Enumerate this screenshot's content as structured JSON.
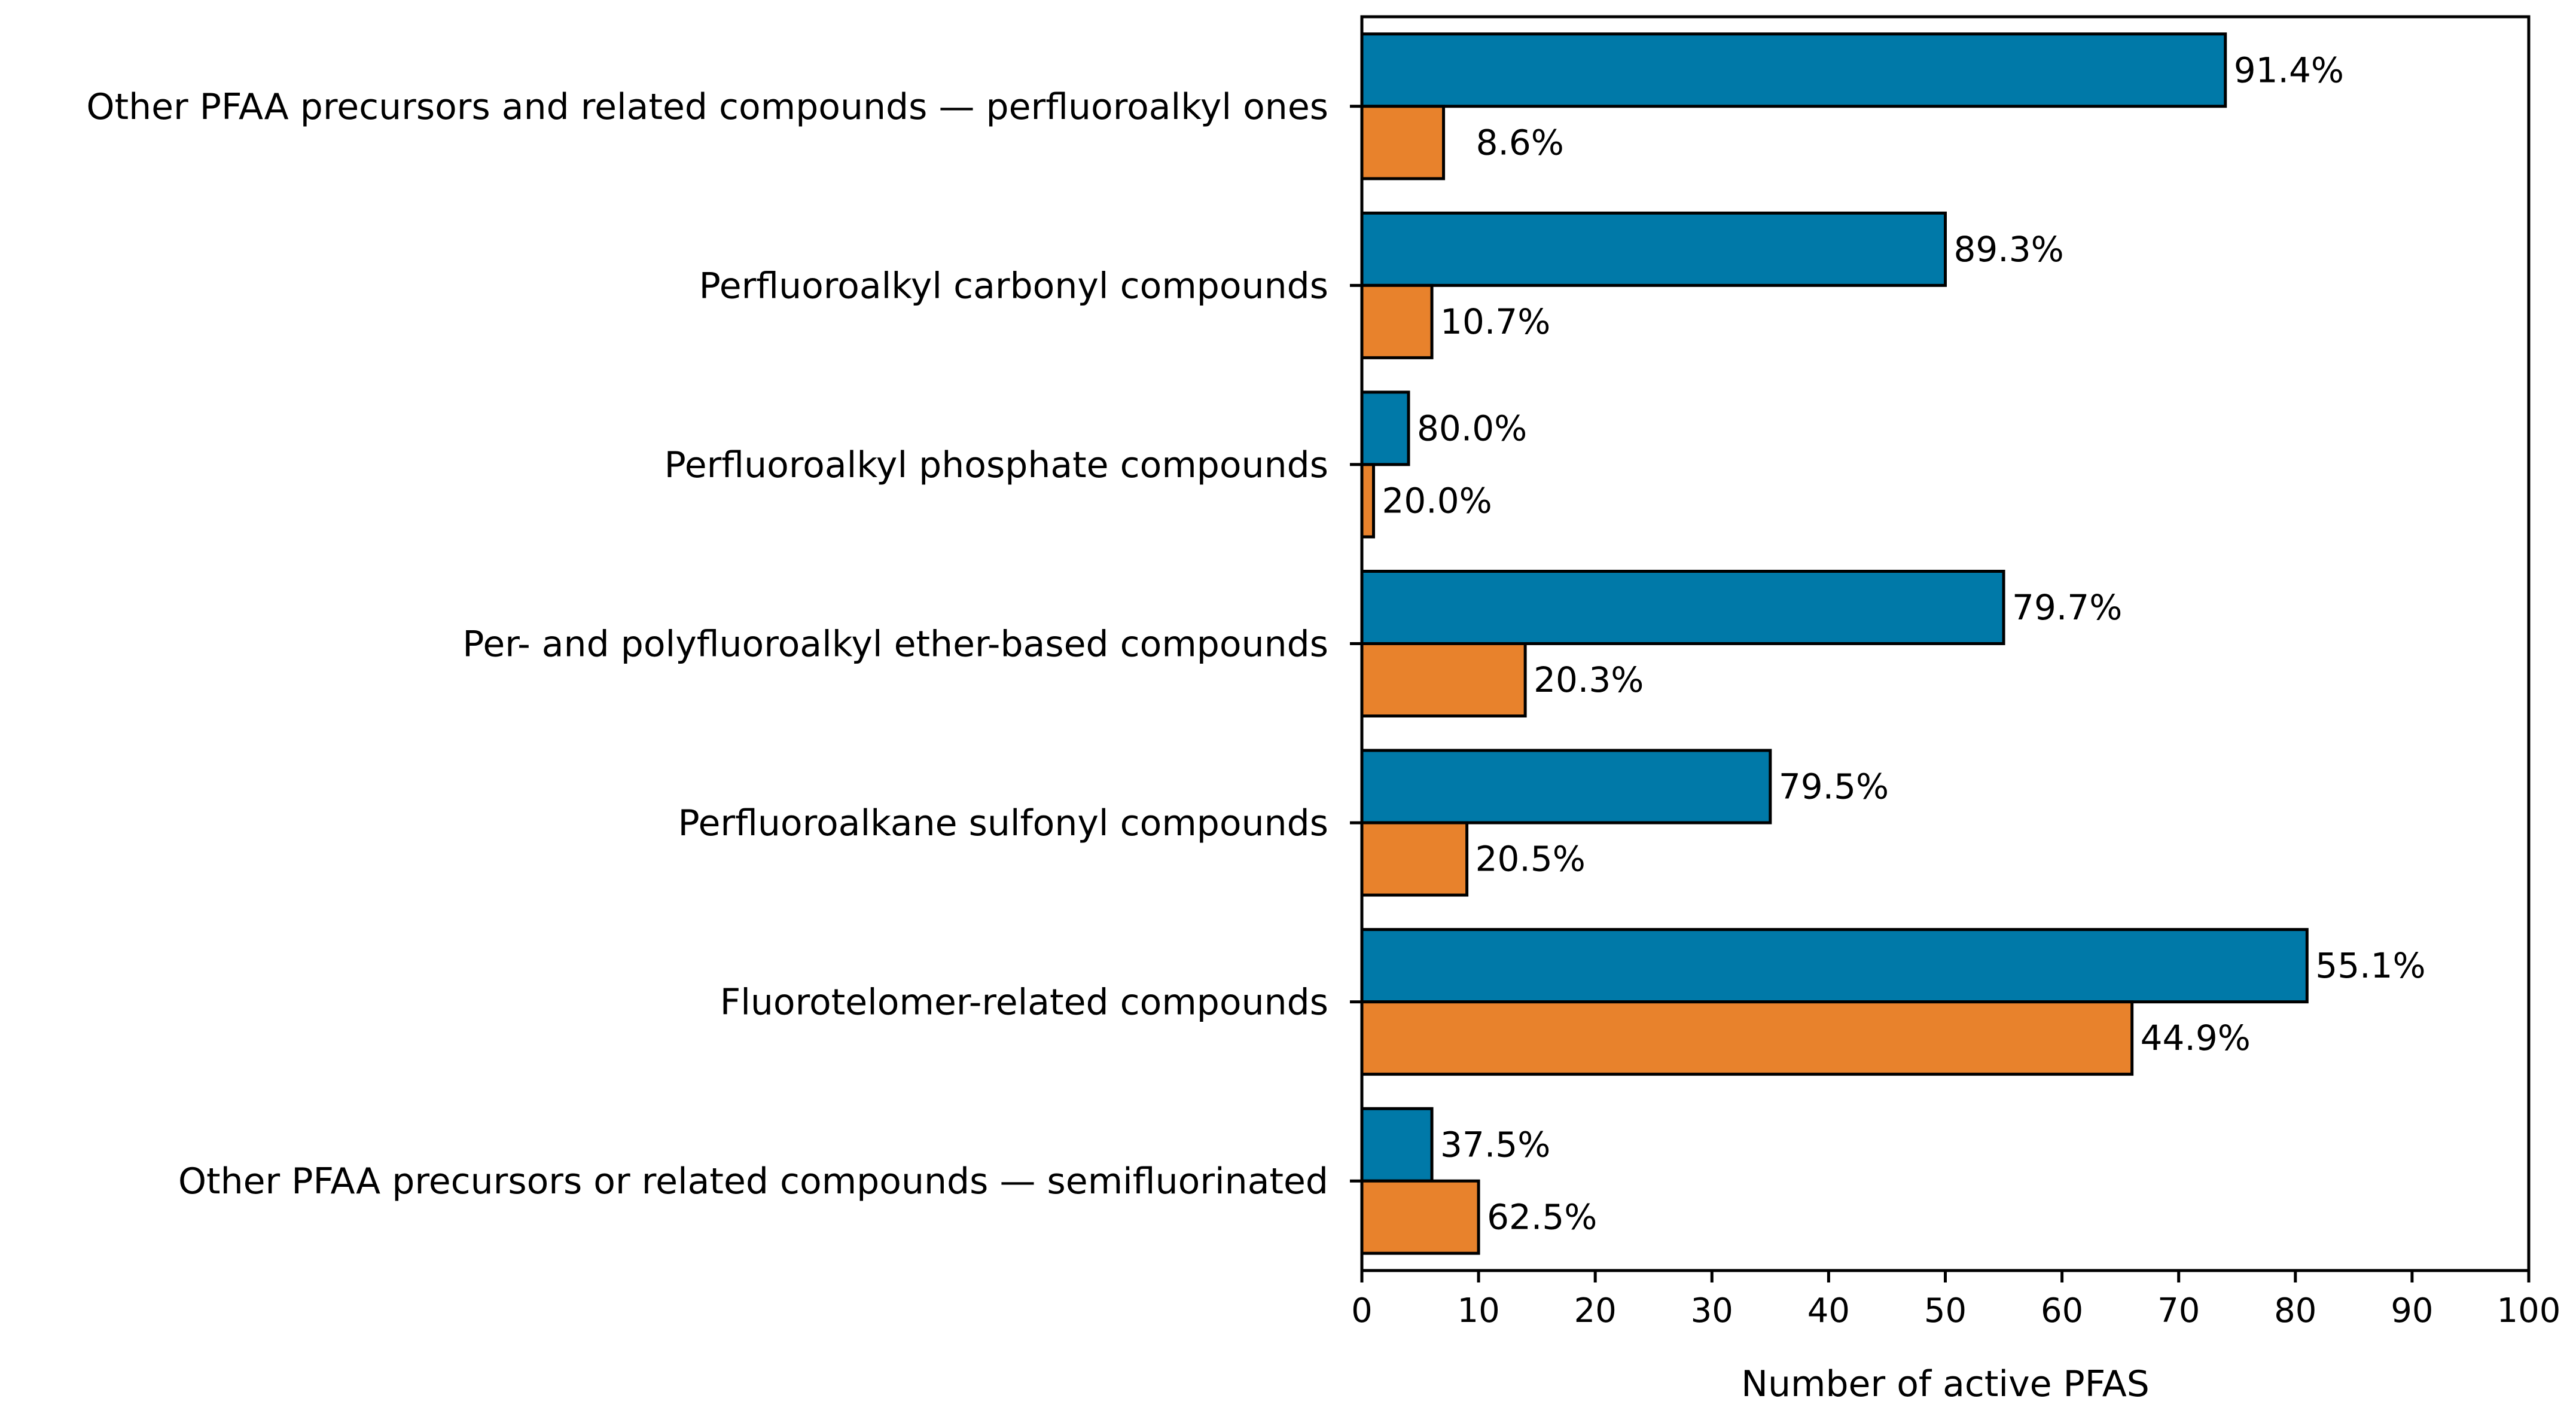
{
  "chart_data": {
    "type": "bar",
    "orientation": "horizontal",
    "title": "",
    "xlabel": "Number of active PFAS",
    "ylabel": "",
    "xlim": [
      0,
      100
    ],
    "xticks": [
      "0",
      "10",
      "20",
      "30",
      "40",
      "50",
      "60",
      "70",
      "80",
      "90",
      "100"
    ],
    "grid": false,
    "legend": null,
    "categories": [
      "Other PFAA precursors and related compounds — perfluoroalkyl ones",
      "Perfluoroalkyl carbonyl compounds",
      "Perfluoroalkyl phosphate compounds",
      "Per- and polyfluoroalkyl ether-based compounds",
      "Perfluoroalkane sulfonyl compounds",
      "Fluorotelomer-related compounds",
      "Other PFAA precursors or related compounds — semifluorinated"
    ],
    "series": [
      {
        "name": "series-1",
        "color": "#0079a8",
        "values": [
          74,
          50,
          4,
          55,
          35,
          81,
          6
        ],
        "labels": [
          "91.4%",
          "89.3%",
          "80.0%",
          "79.7%",
          "79.5%",
          "55.1%",
          "37.5%"
        ]
      },
      {
        "name": "series-2",
        "color": "#e8822c",
        "values": [
          7,
          6,
          1,
          14,
          9,
          66,
          10
        ],
        "labels": [
          "8.6%",
          "10.7%",
          "20.0%",
          "20.3%",
          "20.5%",
          "44.9%",
          "62.5%"
        ]
      }
    ]
  }
}
